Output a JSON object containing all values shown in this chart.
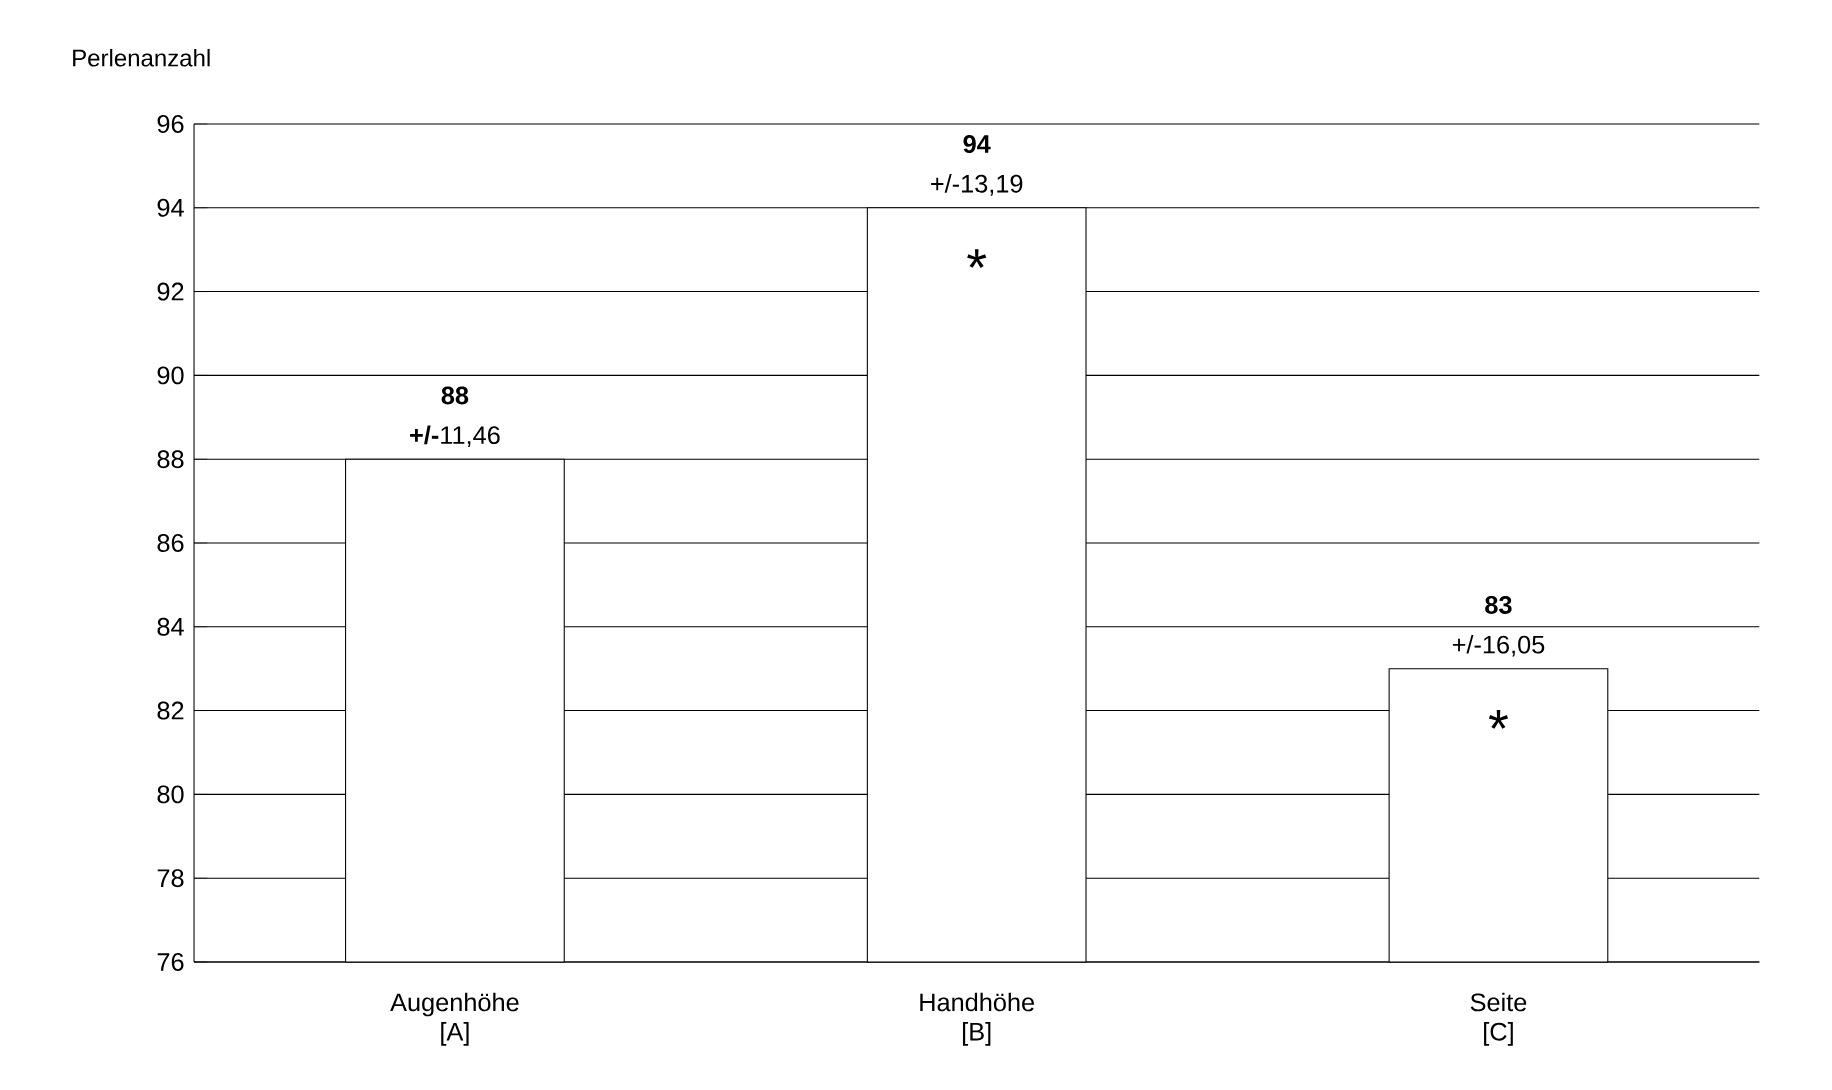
{
  "chart_data": {
    "type": "bar",
    "ylabel": "Perlenanzahl",
    "categories": [
      "Augenhöhe [A]",
      "Handhöhe [B]",
      "Seite [C]"
    ],
    "values": [
      88,
      94,
      83
    ],
    "color": "#ffffff",
    "ylim": [
      76,
      96
    ],
    "yticks": [
      76,
      78,
      80,
      82,
      84,
      86,
      88,
      90,
      92,
      94,
      96
    ],
    "grid": "y",
    "data_labels": true,
    "annotations": [
      {
        "text": "**+/-**11,46",
        "x": "Augenhöhe [A]",
        "y": 88
      },
      {
        "text": "+/-13,19",
        "x": "Handhöhe [B]",
        "y": 94
      },
      {
        "text": "+/-16,05",
        "x": "Seite [C]",
        "y": 83
      },
      "*",
      "*"
    ]
  }
}
